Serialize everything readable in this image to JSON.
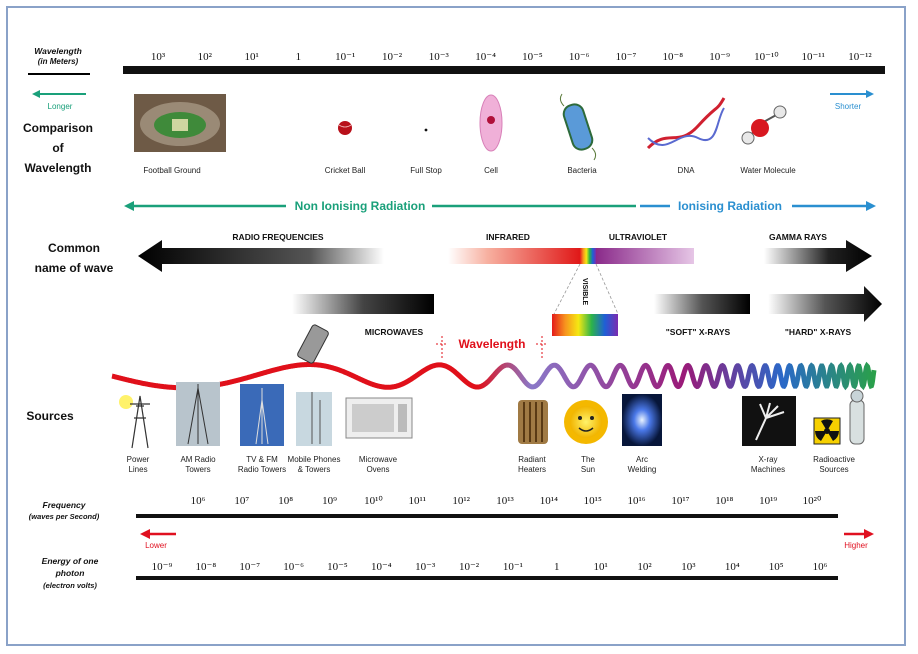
{
  "row_titles": {
    "wavelength": [
      "Wavelength",
      "(in Meters)"
    ],
    "comparison": [
      "Comparison",
      "of",
      "Wavelength"
    ],
    "common_name": [
      "Common",
      "name of wave"
    ],
    "sources": "Sources",
    "frequency": [
      "Frequency",
      "(waves per Second)"
    ],
    "energy": [
      "Energy of one",
      "photon",
      "(electron volts)"
    ]
  },
  "wavelength_ticks": [
    "10³",
    "10²",
    "10¹",
    "1",
    "10⁻¹",
    "10⁻²",
    "10⁻³",
    "10⁻⁴",
    "10⁻⁵",
    "10⁻⁶",
    "10⁻⁷",
    "10⁻⁸",
    "10⁻⁹",
    "10⁻¹⁰",
    "10⁻¹¹",
    "10⁻¹²"
  ],
  "direction": {
    "longer": "Longer",
    "shorter": "Shorter",
    "lower": "Lower",
    "higher": "Higher"
  },
  "comparison_items": [
    "Football Ground",
    "Cricket Ball",
    "Full Stop",
    "Cell",
    "Bacteria",
    "DNA",
    "Water Molecule"
  ],
  "radiation": {
    "non_ionising": "Non Ionising Radiation",
    "ionising": "Ionising Radiation"
  },
  "wave_names": {
    "radio": "RADIO FREQUENCIES",
    "infrared": "INFRARED",
    "ultraviolet": "ULTRAVIOLET",
    "gamma": "GAMMA RAYS",
    "visible": "VISIBLE",
    "microwaves": "MICROWAVES",
    "soft_xrays": "\"SOFT\" X-RAYS",
    "hard_xrays": "\"HARD\" X-RAYS",
    "wavelength_marker": "Wavelength"
  },
  "sources": [
    "Power Lines",
    "AM Radio Towers",
    "TV & FM Radio Towers",
    "Mobile Phones & Towers",
    "Microwave Ovens",
    "Radiant Heaters",
    "The Sun",
    "Arc Welding",
    "X-ray Machines",
    "Radioactive Sources"
  ],
  "frequency_ticks": [
    "10⁶",
    "10⁷",
    "10⁸",
    "10⁹",
    "10¹⁰",
    "10¹¹",
    "10¹²",
    "10¹³",
    "10¹⁴",
    "10¹⁵",
    "10¹⁶",
    "10¹⁷",
    "10¹⁸",
    "10¹⁹",
    "10²⁰"
  ],
  "energy_ticks": [
    "10⁻⁹",
    "10⁻⁸",
    "10⁻⁷",
    "10⁻⁶",
    "10⁻⁵",
    "10⁻⁴",
    "10⁻³",
    "10⁻²",
    "10⁻¹",
    "1",
    "10¹",
    "10²",
    "10³",
    "10⁴",
    "10⁵",
    "10⁶"
  ],
  "colors": {
    "non_ionising": "#1aa07a",
    "ionising": "#2a8fd0",
    "wave_red": "#e0101a",
    "wave_purple": "#8a2a8a",
    "lower_arrow": "#e01020",
    "higher_arrow": "#e01020"
  }
}
